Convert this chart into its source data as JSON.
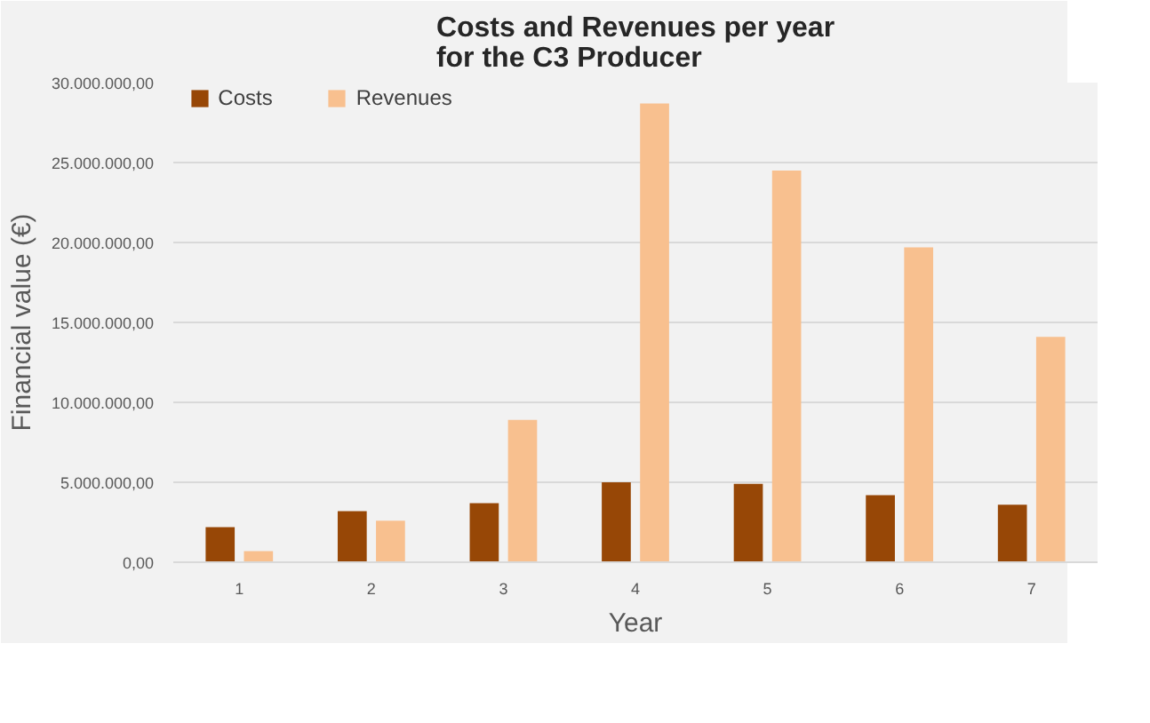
{
  "chart_data": {
    "type": "bar",
    "title": "Costs and Revenues per year\nfor the C3 Producer",
    "xlabel": "Year",
    "ylabel": "Financial value (€)",
    "categories": [
      "1",
      "2",
      "3",
      "4",
      "5",
      "6",
      "7"
    ],
    "series": [
      {
        "name": "Costs",
        "color": "#974706",
        "values": [
          2200000,
          3200000,
          3700000,
          5000000,
          4900000,
          4200000,
          3600000
        ]
      },
      {
        "name": "Revenues",
        "color": "#f8c08f",
        "values": [
          700000,
          2600000,
          8900000,
          28700000,
          24500000,
          19700000,
          14100000
        ]
      }
    ],
    "ylim": [
      0,
      30000000
    ],
    "yticks": [
      {
        "value": 0,
        "label": "0,00"
      },
      {
        "value": 5000000,
        "label": "5.000.000,00"
      },
      {
        "value": 10000000,
        "label": "10.000.000,00"
      },
      {
        "value": 15000000,
        "label": "15.000.000,00"
      },
      {
        "value": 20000000,
        "label": "20.000.000,00"
      },
      {
        "value": 25000000,
        "label": "25.000.000,00"
      },
      {
        "value": 30000000,
        "label": "30.000.000,00"
      }
    ],
    "grid": "y",
    "legend": "top"
  }
}
